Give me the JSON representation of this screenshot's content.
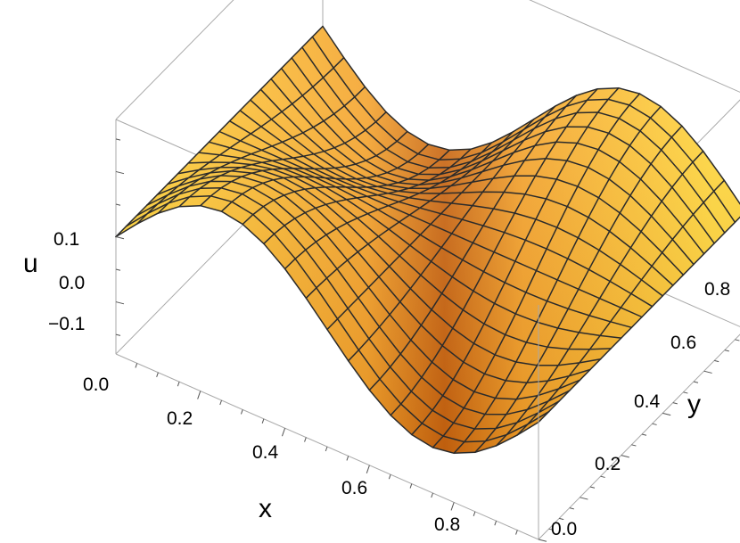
{
  "chart_data": {
    "type": "surface3d",
    "title": "",
    "xlabel": "x",
    "ylabel": "y",
    "zlabel": "u",
    "xlim": [
      0,
      1
    ],
    "ylim": [
      0,
      1
    ],
    "zlim": [
      -0.18,
      0.18
    ],
    "x_ticks": [
      0.2,
      0.4,
      0.6,
      0.8
    ],
    "x_tick_labels": [
      "0.2",
      "0.4",
      "0.6",
      "0.8"
    ],
    "y_ticks": [
      0.0,
      0.2,
      0.4,
      0.6,
      0.8
    ],
    "y_tick_labels": [
      "0.0",
      "0.2",
      "0.4",
      "0.6",
      "0.8"
    ],
    "z_ticks": [
      -0.1,
      0.0,
      0.1
    ],
    "z_tick_labels": [
      "−0.1",
      "0.0",
      "0.1"
    ],
    "corner_tick_label": "0.0",
    "mesh_divisions": 20,
    "surface": "u(x,y) ≈ 0.11·sin(2πx)·cos(πy)",
    "surface_colors": {
      "light": "#ffd63a",
      "mid": "#f4a22a",
      "dark": "#c86410",
      "mesh": "#2b2b2b"
    },
    "box_color": "#a9a9a9",
    "grid": false
  }
}
